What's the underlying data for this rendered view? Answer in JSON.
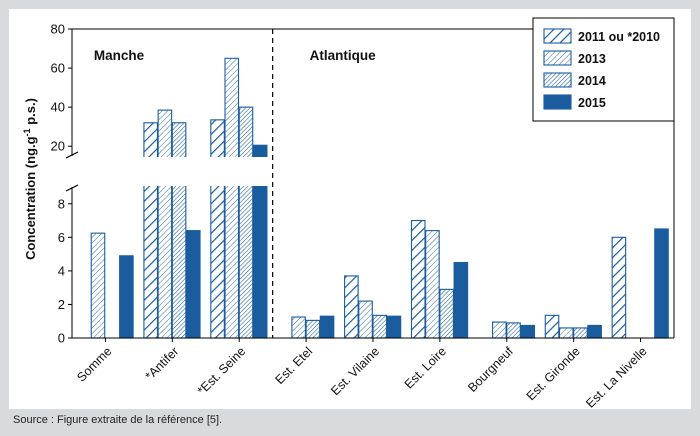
{
  "source": "Source : Figure extraite de la référence [5].",
  "chart_data": {
    "type": "bar",
    "ylabel": "Concentration (ng.g",
    "ylabel_sup": "-1",
    "ylabel_tail": " p.s.)",
    "y_axis_break": true,
    "y_lower_range": [
      0,
      9
    ],
    "y_upper_range": [
      15,
      80
    ],
    "y_lower_ticks": [
      0,
      2,
      4,
      6,
      8
    ],
    "y_upper_ticks": [
      20,
      40,
      60,
      80
    ],
    "regions": [
      {
        "label": "Manche"
      },
      {
        "label": "Atlantique"
      }
    ],
    "categories": [
      "Somme",
      "*Antifer",
      "*Est. Seine",
      "Est. Etel",
      "Est. Vilaine",
      "Est. Loire",
      "Bourgneuf",
      "Est. Gironde",
      "Est. La Nivelle"
    ],
    "series": [
      {
        "name": "2011 ou *2010",
        "pattern": "hatch-wide",
        "values": [
          null,
          32,
          33.5,
          null,
          3.7,
          7.0,
          null,
          1.35,
          6.0
        ]
      },
      {
        "name": "2013",
        "pattern": "hatch-fine",
        "values": [
          6.25,
          38.5,
          65,
          1.25,
          2.2,
          6.4,
          0.95,
          0.6,
          null
        ]
      },
      {
        "name": "2014",
        "pattern": "hatch-dense",
        "values": [
          null,
          32,
          40,
          1.05,
          1.35,
          2.9,
          0.9,
          0.6,
          null
        ]
      },
      {
        "name": "2015",
        "pattern": "solid",
        "values": [
          4.9,
          6.4,
          20.5,
          1.3,
          1.3,
          4.5,
          0.75,
          0.75,
          6.5
        ]
      }
    ],
    "colors": {
      "bar": "#1a5c9e",
      "divider": "#000000"
    },
    "legend_position": "top-right",
    "grid": false
  }
}
